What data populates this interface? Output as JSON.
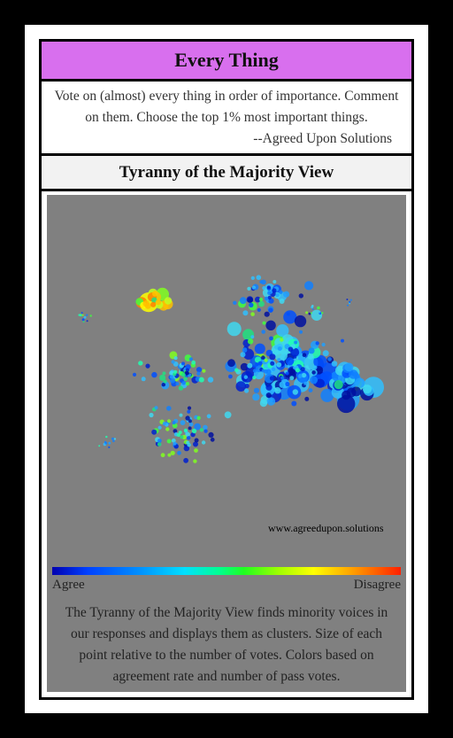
{
  "header": {
    "title": "Every Thing"
  },
  "description": {
    "text": "Vote on (almost) every thing in order of importance. Comment on them. Choose the top 1% most important things.",
    "signature": "--Agreed Upon Solutions"
  },
  "section": {
    "title": "Tyranny of the Majority View"
  },
  "plot": {
    "watermark": "www.agreedupon.solutions",
    "background_color": "#808080"
  },
  "colorbar": {
    "left_label": "Agree",
    "right_label": "Disagree"
  },
  "footer": {
    "text": "The Tyranny of the Majority View finds minority voices in our responses and displays them as clusters. Size of each point relative to the number of votes. Colors based on agreement rate and number of pass votes."
  }
}
